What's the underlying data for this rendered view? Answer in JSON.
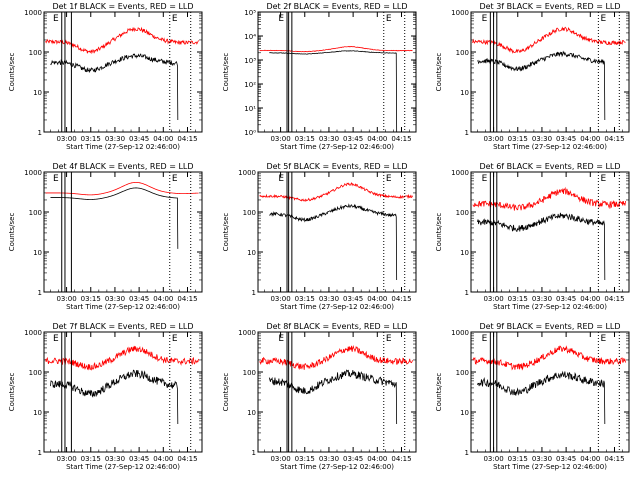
{
  "figure": {
    "xlabel": "Start Time (27-Sep-12 02:46:00)",
    "ylabel": "Counts/sec",
    "x_ticks": [
      "03:00",
      "03:15",
      "03:30",
      "03:45",
      "04:00",
      "04:15"
    ],
    "colors": {
      "events": "#000000",
      "lld": "#ff0000"
    },
    "marker_label": "E"
  },
  "chart_data": [
    {
      "title": "Det 1f BLACK = Events, RED = LLD",
      "type": "line",
      "yscale": "log",
      "ylim": [
        1,
        1000
      ],
      "y_ticks": [
        "1",
        "10",
        "100",
        "1000"
      ],
      "markers": {
        "solid": [
          "02:57",
          "02:59",
          "03:03"
        ],
        "dotted": [
          "04:04",
          "04:17"
        ]
      },
      "series": [
        {
          "color": "red",
          "start": "02:47",
          "end": "04:22",
          "base": 180,
          "peak": 380,
          "min": 150,
          "dip": 0.25,
          "noise": 0.05
        },
        {
          "color": "black",
          "start": "02:50",
          "end": "04:09",
          "base": 55,
          "peak": 80,
          "min": 45,
          "dip": 0.2,
          "noise": 0.06,
          "drop": 2
        }
      ]
    },
    {
      "title": "Det 2f BLACK = Events, RED = LLD",
      "type": "line",
      "yscale": "log",
      "ylim": [
        1,
        100000
      ],
      "y_ticks": [
        "10⁰",
        "10¹",
        "10²",
        "10³",
        "10⁴",
        "10⁵"
      ],
      "markers": {
        "solid": [
          "03:04",
          "03:05",
          "03:07"
        ],
        "dotted": [
          "04:04",
          "04:17"
        ]
      },
      "series": [
        {
          "color": "red",
          "start": "02:47",
          "end": "04:22",
          "base": 2500,
          "peak": 3600,
          "min": 2400,
          "dip": 0.05,
          "noise": 0.01
        },
        {
          "color": "black",
          "start": "02:53",
          "end": "04:12",
          "base": 2000,
          "peak": 2400,
          "min": 1800,
          "dip": 0.05,
          "noise": 0.01,
          "drop": 1
        }
      ]
    },
    {
      "title": "Det 3f BLACK = Events, RED = LLD",
      "type": "line",
      "yscale": "log",
      "ylim": [
        1,
        1000
      ],
      "y_ticks": [
        "1",
        "10",
        "100",
        "1000"
      ],
      "markers": {
        "solid": [
          "02:58",
          "03:00",
          "03:02"
        ],
        "dotted": [
          "04:05",
          "04:18"
        ]
      },
      "series": [
        {
          "color": "red",
          "start": "02:47",
          "end": "04:22",
          "base": 180,
          "peak": 380,
          "min": 150,
          "dip": 0.25,
          "noise": 0.05
        },
        {
          "color": "black",
          "start": "02:50",
          "end": "04:09",
          "base": 60,
          "peak": 90,
          "min": 45,
          "dip": 0.2,
          "noise": 0.06,
          "drop": 2
        }
      ]
    },
    {
      "title": "Det 4f BLACK = Events, RED = LLD",
      "type": "line",
      "yscale": "log",
      "ylim": [
        1,
        1000
      ],
      "y_ticks": [
        "1",
        "10",
        "100",
        "1000"
      ],
      "markers": {
        "solid": [
          "02:57",
          "02:59",
          "03:03"
        ],
        "dotted": [
          "04:04",
          "04:17"
        ]
      },
      "series": [
        {
          "color": "red",
          "start": "02:47",
          "end": "04:22",
          "base": 300,
          "peak": 550,
          "min": 260,
          "dip": 0.05,
          "noise": 0.0
        },
        {
          "color": "black",
          "start": "02:50",
          "end": "04:09",
          "base": 230,
          "peak": 400,
          "min": 200,
          "dip": 0.05,
          "noise": 0.0,
          "drop": 12
        }
      ]
    },
    {
      "title": "Det 5f BLACK = Events, RED = LLD",
      "type": "line",
      "yscale": "log",
      "ylim": [
        1,
        1000
      ],
      "y_ticks": [
        "1",
        "10",
        "100",
        "1000"
      ],
      "markers": {
        "solid": [
          "03:04",
          "03:05",
          "03:07"
        ],
        "dotted": [
          "04:04",
          "04:17"
        ]
      },
      "series": [
        {
          "color": "red",
          "start": "02:47",
          "end": "04:22",
          "base": 250,
          "peak": 500,
          "min": 210,
          "dip": 0.1,
          "noise": 0.03
        },
        {
          "color": "black",
          "start": "02:53",
          "end": "04:12",
          "base": 90,
          "peak": 140,
          "min": 65,
          "dip": 0.15,
          "noise": 0.04,
          "drop": 2
        }
      ]
    },
    {
      "title": "Det 6f BLACK = Events, RED = LLD",
      "type": "line",
      "yscale": "log",
      "ylim": [
        1,
        1000
      ],
      "y_ticks": [
        "1",
        "10",
        "100",
        "1000"
      ],
      "markers": {
        "solid": [
          "02:58",
          "03:00",
          "03:02"
        ],
        "dotted": [
          "04:05",
          "04:18"
        ]
      },
      "series": [
        {
          "color": "red",
          "start": "02:47",
          "end": "04:22",
          "base": 160,
          "peak": 330,
          "min": 140,
          "dip": 0.1,
          "noise": 0.08
        },
        {
          "color": "black",
          "start": "02:50",
          "end": "04:09",
          "base": 55,
          "peak": 80,
          "min": 35,
          "dip": 0.15,
          "noise": 0.08,
          "drop": 2
        }
      ]
    },
    {
      "title": "Det 7f BLACK = Events, RED = LLD",
      "type": "line",
      "yscale": "log",
      "ylim": [
        1,
        1000
      ],
      "y_ticks": [
        "1",
        "10",
        "100",
        "1000"
      ],
      "markers": {
        "solid": [
          "02:57",
          "02:59",
          "03:03"
        ],
        "dotted": [
          "04:04",
          "04:17"
        ]
      },
      "series": [
        {
          "color": "red",
          "start": "02:47",
          "end": "04:22",
          "base": 190,
          "peak": 380,
          "min": 170,
          "dip": 0.15,
          "noise": 0.08
        },
        {
          "color": "black",
          "start": "02:50",
          "end": "04:09",
          "base": 50,
          "peak": 90,
          "min": 30,
          "dip": 0.25,
          "noise": 0.1,
          "drop": 5
        }
      ]
    },
    {
      "title": "Det 8f BLACK = Events, RED = LLD",
      "type": "line",
      "yscale": "log",
      "ylim": [
        1,
        1000
      ],
      "y_ticks": [
        "1",
        "10",
        "100",
        "1000"
      ],
      "markers": {
        "solid": [
          "03:04",
          "03:05",
          "03:07"
        ],
        "dotted": [
          "04:04",
          "04:17"
        ]
      },
      "series": [
        {
          "color": "red",
          "start": "02:47",
          "end": "04:22",
          "base": 190,
          "peak": 380,
          "min": 170,
          "dip": 0.15,
          "noise": 0.08
        },
        {
          "color": "black",
          "start": "02:53",
          "end": "04:12",
          "base": 60,
          "peak": 90,
          "min": 35,
          "dip": 0.25,
          "noise": 0.1,
          "drop": 5
        }
      ]
    },
    {
      "title": "Det 9f BLACK = Events, RED = LLD",
      "type": "line",
      "yscale": "log",
      "ylim": [
        1,
        1000
      ],
      "y_ticks": [
        "1",
        "10",
        "100",
        "1000"
      ],
      "markers": {
        "solid": [
          "02:58",
          "03:00",
          "03:02"
        ],
        "dotted": [
          "04:05",
          "04:18"
        ]
      },
      "series": [
        {
          "color": "red",
          "start": "02:47",
          "end": "04:22",
          "base": 190,
          "peak": 380,
          "min": 170,
          "dip": 0.15,
          "noise": 0.08
        },
        {
          "color": "black",
          "start": "02:50",
          "end": "04:09",
          "base": 55,
          "peak": 85,
          "min": 40,
          "dip": 0.25,
          "noise": 0.1,
          "drop": 5
        }
      ]
    }
  ]
}
